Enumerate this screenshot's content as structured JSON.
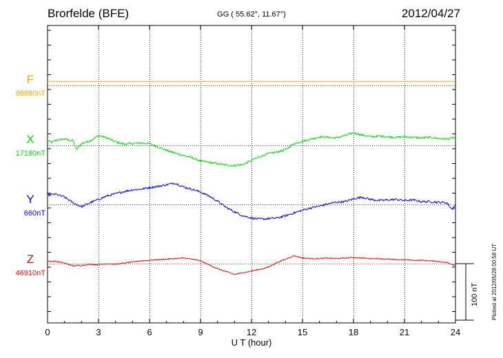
{
  "header": {
    "station": "Brorfelde (BFE)",
    "coords": "GG ( 55.62°,  11.67°)",
    "date": "2012/04/27"
  },
  "footer": {
    "plotted_note": "Plotted at 2012/05/28 00:58 UT"
  },
  "colors": {
    "F": "#ffa500",
    "X": "#00dd00",
    "Y": "#0000ff",
    "Z": "#ff0000",
    "grid": "#000000"
  },
  "chart_data": {
    "type": "line",
    "title": "Brorfelde (BFE)",
    "xlabel": "U T (hour)",
    "ylabel": "",
    "xlim": [
      0,
      24
    ],
    "xticks": [
      0,
      3,
      6,
      9,
      12,
      15,
      18,
      21,
      24
    ],
    "xtick_labels": [
      "0",
      "3",
      "6",
      "9",
      "12",
      "15",
      "18",
      "21",
      "24"
    ],
    "y_units": "nT",
    "scale_bar": {
      "value": 100,
      "label": "100 nT"
    },
    "components": [
      {
        "key": "F",
        "label": "F",
        "baseline_label": "88880nT",
        "baseline": 88880,
        "x": [
          0,
          24
        ],
        "values": [
          7,
          7
        ]
      },
      {
        "key": "X",
        "label": "X",
        "baseline_label": "17190nT",
        "baseline": 17190,
        "x": [
          0,
          0.25,
          0.5,
          1,
          1.5,
          1.7,
          2,
          2.5,
          3,
          3.5,
          4,
          4.5,
          5,
          5.5,
          6,
          6.5,
          7,
          7.5,
          8,
          8.5,
          9,
          9.5,
          10,
          10.5,
          11,
          11.5,
          12,
          12.5,
          13,
          13.5,
          14,
          14.5,
          15,
          15.5,
          16,
          16.5,
          17,
          17.5,
          18,
          18.5,
          19,
          19.5,
          20,
          20.5,
          21,
          21.5,
          22,
          22.5,
          23,
          23.5,
          24
        ],
        "values": [
          8,
          5,
          9,
          11,
          8,
          -8,
          3,
          8,
          17,
          13,
          6,
          2,
          3,
          4,
          3,
          -3,
          -9,
          -14,
          -18,
          -22,
          -28,
          -30,
          -33,
          -35,
          -36,
          -34,
          -27,
          -20,
          -15,
          -12,
          -8,
          3,
          7,
          11,
          15,
          14,
          13,
          17,
          22,
          18,
          15,
          16,
          15,
          14,
          15,
          14,
          13,
          14,
          12,
          11,
          14
        ]
      },
      {
        "key": "Y",
        "label": "Y",
        "baseline_label": "660nT",
        "baseline": 660,
        "x": [
          0,
          0.5,
          1,
          1.5,
          2,
          2.5,
          3,
          3.5,
          4,
          4.5,
          5,
          5.5,
          6,
          6.5,
          7,
          7.5,
          8,
          8.5,
          9,
          9.5,
          10,
          10.5,
          11,
          11.5,
          12,
          12.5,
          13,
          13.5,
          14,
          14.5,
          15,
          15.5,
          16,
          16.5,
          17,
          17.5,
          18,
          18.5,
          19,
          19.5,
          20,
          20.5,
          21,
          21.5,
          22,
          22.5,
          23,
          23.5,
          23.8,
          24
        ],
        "values": [
          17,
          18,
          13,
          3,
          -4,
          3,
          9,
          15,
          19,
          23,
          26,
          27,
          30,
          32,
          35,
          38,
          31,
          27,
          22,
          15,
          6,
          -5,
          -13,
          -20,
          -24,
          -26,
          -25,
          -24,
          -20,
          -15,
          -10,
          -6,
          -3,
          1,
          4,
          5,
          10,
          13,
          9,
          7,
          8,
          9,
          7,
          8,
          5,
          5,
          4,
          3,
          -9,
          0
        ]
      },
      {
        "key": "Z",
        "label": "Z",
        "baseline_label": "46910nT",
        "baseline": 46910,
        "x": [
          0,
          0.5,
          1,
          1.5,
          2,
          2.5,
          3,
          3.5,
          4,
          4.5,
          5,
          5.5,
          6,
          6.5,
          7,
          7.5,
          8,
          8.5,
          9,
          9.5,
          10,
          10.5,
          11,
          11.5,
          12,
          12.5,
          13,
          13.5,
          14,
          14.5,
          15,
          15.5,
          16,
          16.5,
          17,
          17.5,
          18,
          18.5,
          19,
          19.5,
          20,
          20.5,
          21,
          21.5,
          22,
          22.5,
          23,
          23.5,
          24
        ],
        "values": [
          4,
          4,
          1,
          -4,
          -3,
          -1,
          -2,
          0,
          -1,
          1,
          3,
          5,
          6,
          7,
          8,
          9,
          10,
          8,
          5,
          -2,
          -9,
          -14,
          -19,
          -16,
          -13,
          -10,
          -6,
          2,
          8,
          14,
          10,
          9,
          9,
          10,
          9,
          10,
          11,
          10,
          9,
          9,
          8,
          7,
          7,
          6,
          6,
          5,
          4,
          2,
          -3
        ]
      }
    ]
  }
}
